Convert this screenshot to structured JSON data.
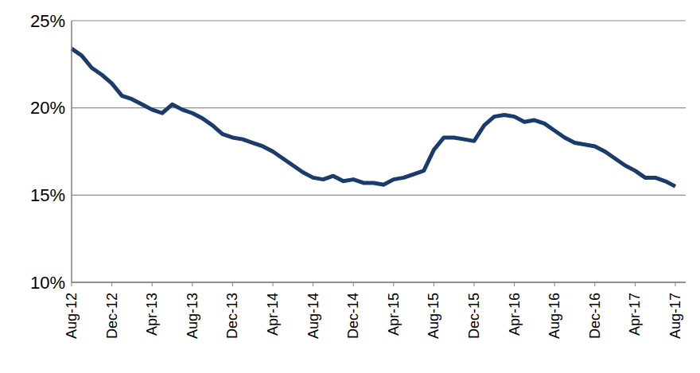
{
  "chart_data": {
    "type": "line",
    "categories": [
      "Aug-12",
      null,
      null,
      null,
      "Dec-12",
      null,
      null,
      null,
      "Apr-13",
      null,
      null,
      null,
      "Aug-13",
      null,
      null,
      null,
      "Dec-13",
      null,
      null,
      null,
      "Apr-14",
      null,
      null,
      null,
      "Aug-14",
      null,
      null,
      null,
      "Dec-14",
      null,
      null,
      null,
      "Apr-15",
      null,
      null,
      null,
      "Aug-15",
      null,
      null,
      null,
      "Dec-15",
      null,
      null,
      null,
      "Apr-16",
      null,
      null,
      null,
      "Aug-16",
      null,
      null,
      null,
      "Dec-16",
      null,
      null,
      null,
      "Apr-17",
      null,
      null,
      null,
      "Aug-17"
    ],
    "values": [
      23.4,
      23.0,
      22.3,
      21.9,
      21.4,
      20.7,
      20.5,
      20.2,
      19.9,
      19.7,
      20.2,
      19.9,
      19.7,
      19.4,
      19.0,
      18.5,
      18.3,
      18.2,
      18.0,
      17.8,
      17.5,
      17.1,
      16.7,
      16.3,
      16.0,
      15.9,
      16.1,
      15.8,
      15.9,
      15.7,
      15.7,
      15.6,
      15.9,
      16.0,
      16.2,
      16.4,
      17.6,
      18.3,
      18.3,
      18.2,
      18.1,
      19.0,
      19.5,
      19.6,
      19.5,
      19.2,
      19.3,
      19.1,
      18.7,
      18.3,
      18.0,
      17.9,
      17.8,
      17.5,
      17.1,
      16.7,
      16.4,
      16.0,
      16.0,
      15.8,
      15.5
    ],
    "color": "#1b3c6b",
    "ylim": [
      10,
      25
    ],
    "yticks": [
      {
        "value": 10,
        "label": "10%"
      },
      {
        "value": 15,
        "label": "15%"
      },
      {
        "value": 20,
        "label": "20%"
      },
      {
        "value": 25,
        "label": "25%"
      }
    ],
    "grid": true
  }
}
